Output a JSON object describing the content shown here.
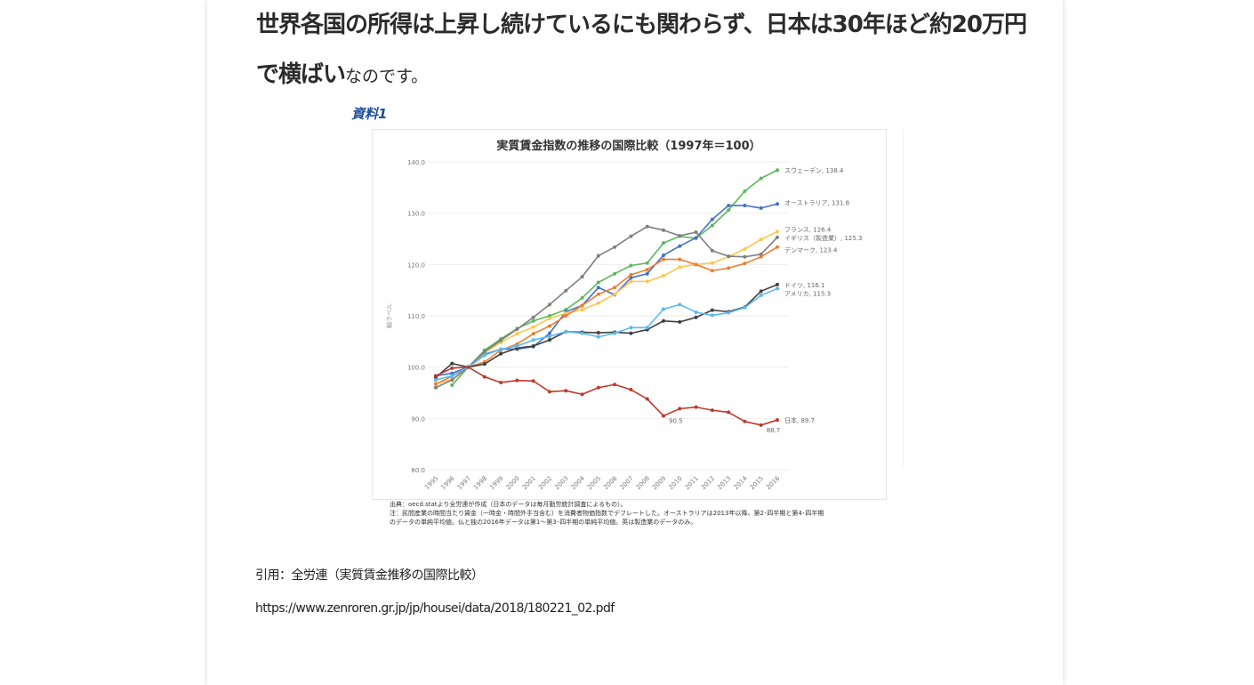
{
  "article": {
    "lead_bold": "世界各国の所得は上昇し続けているにも関わらず、日本は30年ほど約20万円で横ばい",
    "lead_normal": "なのです。",
    "figure_label": "資料1",
    "notes": [
      "出典：oecd.statより全労連が作成（日本のデータは毎月勤労統計調査によるもの）。",
      "注：民間産業の時間当たり賃金（一時金・時間外手当含む）を消費者物価指数でデフレートした。オーストラリアは2013年以降、第2･四半期と第4･四半期",
      "のデータの単純平均値。仏と独の2016年データは第1～第3･四半期の単純平均値。英は製造業のデータのみ。"
    ],
    "citation": "引用：全労連（実質賃金推移の国際比較）",
    "url": "https://www.zenroren.gr.jp/jp/housei/data/2018/180221_02.pdf"
  },
  "chart_data": {
    "type": "line",
    "title": "実質賃金指数の推移の国際比較（1997年＝100）",
    "xlabel": "",
    "ylabel": "軸ラベル",
    "ylim": [
      80,
      140
    ],
    "yticks": [
      "80.0",
      "90.0",
      "100.0",
      "110.0",
      "120.0",
      "130.0",
      "140.0"
    ],
    "grid": true,
    "legend": "end-labels-right",
    "x": [
      "1995",
      "1996",
      "1997",
      "1998",
      "1999",
      "2000",
      "2001",
      "2002",
      "2003",
      "2004",
      "2005",
      "2006",
      "2007",
      "2008",
      "2009",
      "2010",
      "2011",
      "2012",
      "2013",
      "2014",
      "2015",
      "2016"
    ],
    "series": [
      {
        "name": "スウェーデン",
        "label": "スウェーデン, 138.4",
        "color": "#5cb85c",
        "values": [
          null,
          96.5,
          100,
          103.3,
          105.5,
          107.5,
          109.0,
          110.0,
          111.2,
          113.5,
          116.5,
          118.2,
          119.8,
          120.3,
          124.2,
          125.5,
          125.1,
          127.6,
          130.6,
          134.3,
          136.8,
          138.4
        ]
      },
      {
        "name": "オーストラリア",
        "label": "オーストラリア, 131.8",
        "color": "#4472c4",
        "values": [
          98.3,
          98.8,
          100,
          102.5,
          103.5,
          103.5,
          104.0,
          106.6,
          110.8,
          112.0,
          115.5,
          114.1,
          117.4,
          118.2,
          121.8,
          123.6,
          125.2,
          128.8,
          131.5,
          131.5,
          131.0,
          131.8
        ]
      },
      {
        "name": "フランス",
        "label": "フランス, 126.4",
        "color": "#ffc54d",
        "values": [
          96.8,
          97.5,
          100,
          102.8,
          104.8,
          106.5,
          107.8,
          109.5,
          110.5,
          111.2,
          112.5,
          114.2,
          116.7,
          116.7,
          117.8,
          119.5,
          120.0,
          120.3,
          121.5,
          123.0,
          124.9,
          126.4
        ]
      },
      {
        "name": "イギリス（製造業）",
        "label": "イギリス（製造業）, 125.3",
        "color": "#7f7f7f",
        "values": [
          96.0,
          97.5,
          100,
          103.0,
          105.2,
          107.4,
          109.7,
          112.2,
          114.9,
          117.6,
          121.7,
          123.4,
          125.5,
          127.4,
          126.7,
          125.6,
          126.3,
          122.7,
          121.6,
          121.5,
          122.0,
          125.3
        ]
      },
      {
        "name": "デンマーク",
        "label": "デンマーク, 123.4",
        "color": "#ed7d31",
        "values": [
          96.7,
          98.2,
          100,
          101.0,
          103.3,
          104.5,
          106.5,
          108.0,
          110.0,
          112.0,
          114.2,
          115.5,
          118.0,
          119.0,
          121.0,
          121.0,
          120.0,
          118.8,
          119.3,
          120.2,
          121.5,
          123.4
        ]
      },
      {
        "name": "ドイツ",
        "label": "ドイツ, 116.1",
        "color": "#404040",
        "values": [
          98.0,
          100.7,
          100,
          100.6,
          102.6,
          103.7,
          104.1,
          105.3,
          106.9,
          106.8,
          106.7,
          106.8,
          106.6,
          107.3,
          109.0,
          108.8,
          109.7,
          111.1,
          110.8,
          111.7,
          114.8,
          116.1
        ]
      },
      {
        "name": "アメリカ",
        "label": "アメリカ, 115.3",
        "color": "#5bb8f0",
        "values": [
          97.5,
          98.3,
          100,
          102.3,
          103.5,
          104.1,
          105.3,
          106.0,
          106.9,
          106.6,
          105.9,
          106.6,
          107.7,
          107.7,
          111.3,
          112.2,
          110.7,
          110.1,
          110.6,
          111.6,
          114.0,
          115.3
        ]
      },
      {
        "name": "日本",
        "label": "日本, 89.7",
        "color": "#c0392b",
        "values": [
          98.3,
          99.8,
          100,
          98.1,
          97.0,
          97.4,
          97.3,
          95.2,
          95.4,
          94.7,
          96.0,
          96.6,
          95.6,
          93.8,
          90.5,
          91.9,
          92.2,
          91.6,
          91.2,
          89.4,
          88.7,
          89.7
        ]
      }
    ],
    "annotations": [
      {
        "series": "日本",
        "x": "2009",
        "text": "90.5"
      },
      {
        "series": "日本",
        "x": "2015",
        "text": "88.7"
      }
    ]
  }
}
